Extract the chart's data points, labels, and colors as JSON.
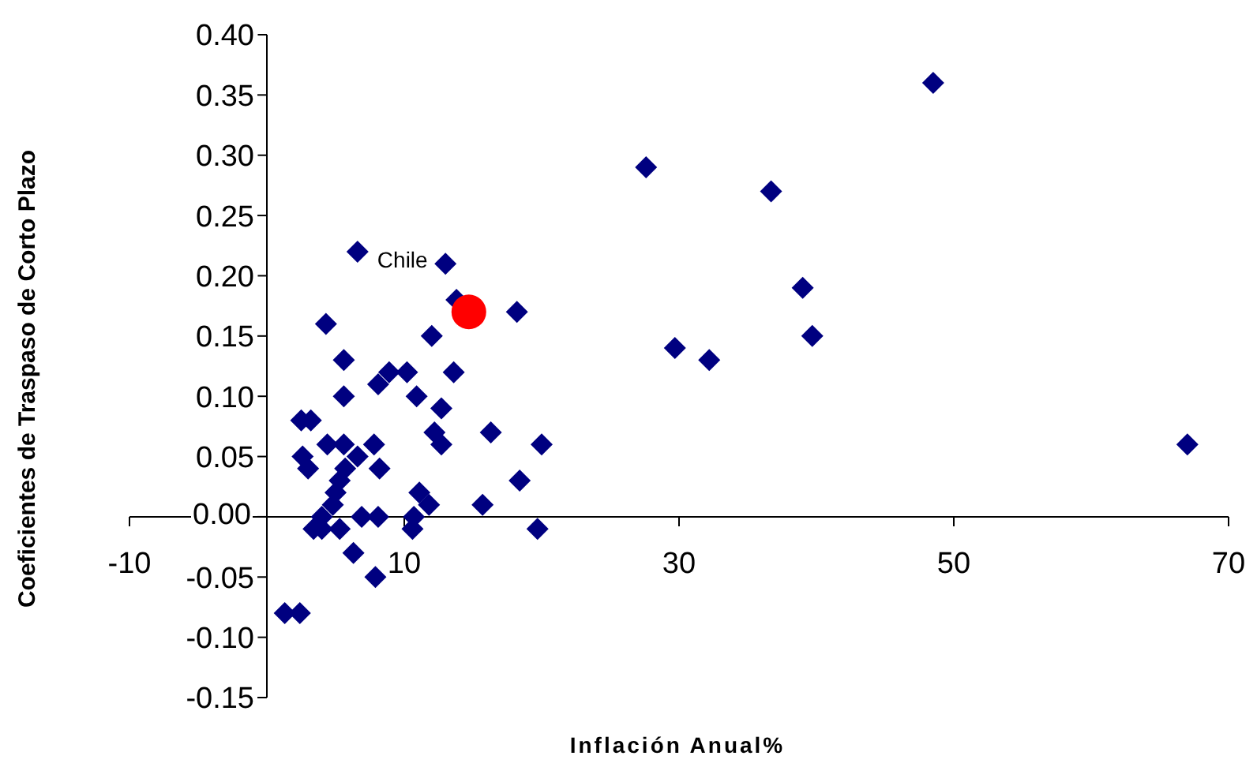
{
  "chart_data": {
    "type": "scatter",
    "xlabel": "Inflación Anual%",
    "ylabel": "Coeficientes de Traspaso de Corto Plazo",
    "xlim": [
      -10,
      70
    ],
    "xticks": [
      -10,
      10,
      30,
      50,
      70
    ],
    "ylim": [
      -0.15,
      0.4
    ],
    "yticks": [
      {
        "value": -0.15,
        "label": "-0.15"
      },
      {
        "value": -0.1,
        "label": "-0.10"
      },
      {
        "value": -0.05,
        "label": "-0.05"
      },
      {
        "value": 0,
        "label": "0.00"
      },
      {
        "value": 0.05,
        "label": "0.05"
      },
      {
        "value": 0.1,
        "label": "0.10"
      },
      {
        "value": 0.15,
        "label": "0.15"
      },
      {
        "value": 0.2,
        "label": "0.20"
      },
      {
        "value": 0.25,
        "label": "0.25"
      },
      {
        "value": 0.3,
        "label": "0.30"
      },
      {
        "value": 0.35,
        "label": "0.35"
      },
      {
        "value": 0.4,
        "label": "0.40"
      }
    ],
    "grid": false,
    "legend": false,
    "series": [
      {
        "color": "#000080",
        "marker": "diamond",
        "x": [
          48.5,
          27.6,
          36.7,
          39.0,
          39.7,
          29.7,
          32.2,
          67.0,
          18.2,
          13.8,
          13.0,
          6.6,
          4.3,
          12.0,
          5.6,
          8.9,
          10.2,
          13.6,
          8.1,
          5.6,
          10.9,
          12.7,
          12.2,
          12.7,
          16.3,
          20.0,
          2.5,
          3.2,
          4.4,
          5.6,
          7.8,
          6.6,
          2.6,
          3.0,
          5.7,
          8.2,
          5.3,
          18.4,
          5.0,
          11.1,
          11.8,
          15.7,
          4.8,
          4.0,
          6.9,
          8.1,
          10.7,
          10.6,
          19.7,
          3.4,
          5.3,
          4.0,
          6.3,
          7.9,
          1.3,
          2.4
        ],
        "values": [
          0.36,
          0.29,
          0.27,
          0.19,
          0.15,
          0.14,
          0.13,
          0.06,
          0.17,
          0.18,
          0.21,
          0.22,
          0.16,
          0.15,
          0.13,
          0.12,
          0.12,
          0.12,
          0.11,
          0.1,
          0.1,
          0.09,
          0.07,
          0.06,
          0.07,
          0.06,
          0.08,
          0.08,
          0.06,
          0.06,
          0.06,
          0.05,
          0.05,
          0.04,
          0.04,
          0.04,
          0.03,
          0.03,
          0.02,
          0.02,
          0.01,
          0.01,
          0.01,
          0.0,
          0.0,
          0.0,
          0.0,
          -0.01,
          -0.01,
          -0.01,
          -0.01,
          -0.01,
          -0.03,
          -0.05,
          -0.08,
          -0.08
        ]
      },
      {
        "color": "#ff0000",
        "marker": "circle",
        "x": [
          14.7
        ],
        "values": [
          0.17
        ]
      }
    ],
    "annotations": [
      {
        "text": "Chile",
        "x": 14.7,
        "y": 0.17
      }
    ]
  }
}
